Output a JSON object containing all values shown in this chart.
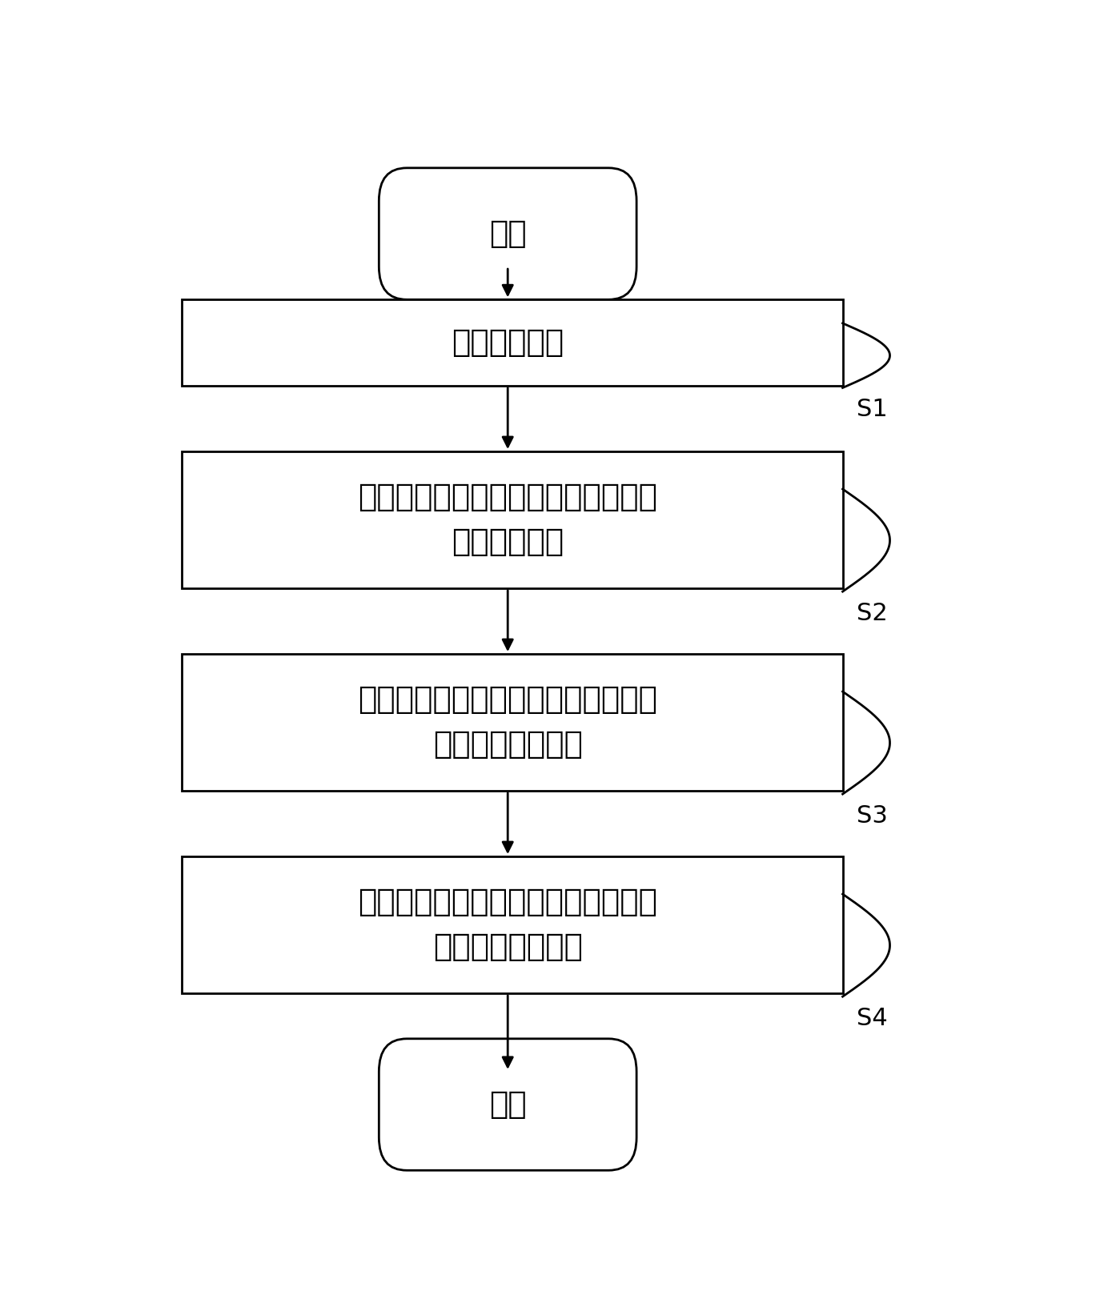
{
  "bg_color": "#ffffff",
  "line_color": "#000000",
  "text_color": "#000000",
  "font_size_main": 28,
  "font_size_label": 22,
  "start_end_text": [
    "开始",
    "结束"
  ],
  "box_texts": [
    "获取轮询请求",
    "根据轮询请求对设备进行加锁轮询，\n得到请求数量",
    "根据请求数量对设备进行微调，得到\n微调后的请求数量",
    "根据微调后的请求数量对设备进行轮\n询，得到轮询结果"
  ],
  "step_labels": [
    "S1",
    "S2",
    "S3",
    "S4"
  ],
  "figsize": [
    13.84,
    16.43
  ],
  "dpi": 100
}
